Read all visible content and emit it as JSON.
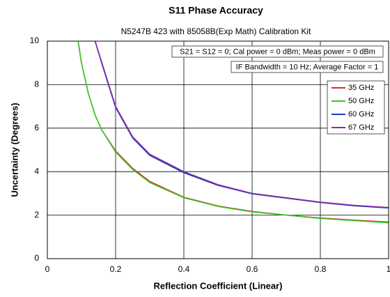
{
  "chart_data": {
    "type": "line",
    "title": "S11 Phase Accuracy",
    "subtitle": "N5247B 423 with 85058B(Exp Math) Calibration Kit",
    "xlabel": "Reflection Coefficient (Linear)",
    "ylabel": "Uncertainty (Degrees)",
    "annotations": [
      "S21 = S12 = 0; Cal power = 0 dBm; Meas power = 0 dBm",
      "IF Bandwidth = 10 Hz; Average Factor = 1"
    ],
    "x": [
      0.09,
      0.1,
      0.12,
      0.14,
      0.16,
      0.2,
      0.25,
      0.3,
      0.4,
      0.5,
      0.6,
      0.7,
      0.8,
      0.9,
      1.0
    ],
    "series": [
      {
        "name": "35 GHz",
        "color": "#e0282a",
        "values": [
          10,
          9.0,
          7.6,
          6.6,
          5.9,
          4.95,
          4.15,
          3.55,
          2.82,
          2.42,
          2.17,
          2.0,
          1.87,
          1.77,
          1.68
        ]
      },
      {
        "name": "50 GHz",
        "color": "#33cc22",
        "values": [
          10,
          9.0,
          7.6,
          6.6,
          5.9,
          4.9,
          4.1,
          3.5,
          2.8,
          2.4,
          2.15,
          2.0,
          1.85,
          1.75,
          1.65
        ]
      },
      {
        "name": "60 GHz",
        "color": "#1a3fb5",
        "values": [
          null,
          null,
          null,
          10,
          8.95,
          6.95,
          5.55,
          4.75,
          3.95,
          3.37,
          2.98,
          2.78,
          2.58,
          2.43,
          2.33
        ]
      },
      {
        "name": "67 GHz",
        "color": "#8a2aa8",
        "values": [
          null,
          null,
          null,
          10,
          9.0,
          7.0,
          5.6,
          4.8,
          4.0,
          3.4,
          3.0,
          2.8,
          2.6,
          2.45,
          2.35
        ]
      }
    ],
    "xlim": [
      0,
      1
    ],
    "xticks": [
      0,
      0.2,
      0.4,
      0.6,
      0.8,
      1
    ],
    "ylim": [
      0,
      10
    ],
    "yticks": [
      0,
      2,
      4,
      6,
      8,
      10
    ],
    "grid": true,
    "legend": "upper right"
  }
}
